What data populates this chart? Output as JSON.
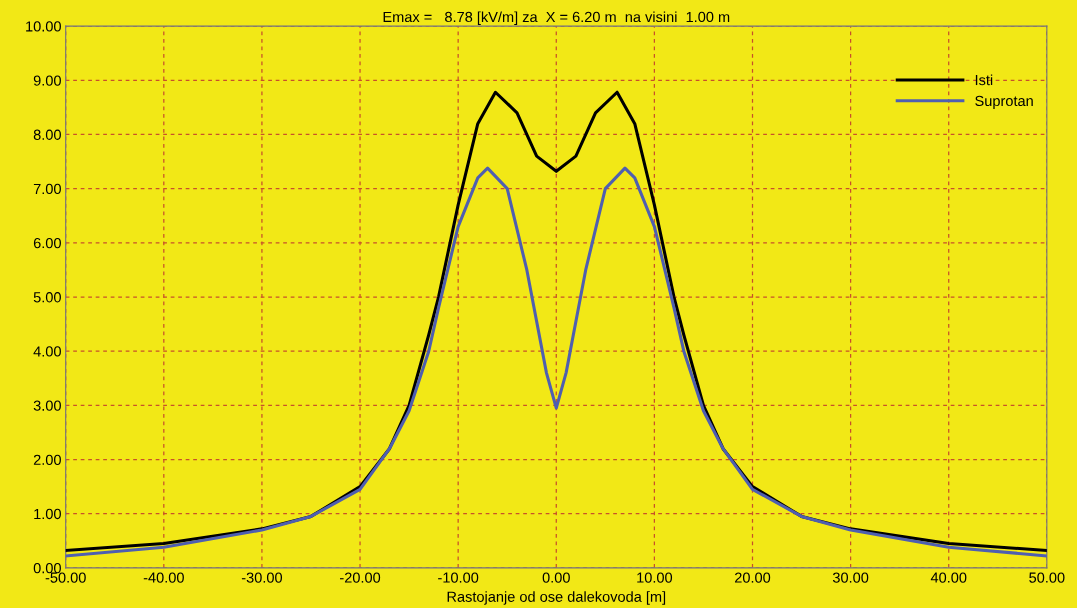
{
  "chart_data": {
    "type": "line",
    "title": "Emax =   8.78 [kV/m] za  X = 6.20 m  na visini  1.00 m",
    "xlabel": "Rastojanje od ose dalekovoda [m]",
    "xlim": [
      -50,
      50
    ],
    "ylim": [
      0,
      10
    ],
    "xticks": [
      {
        "value": -50,
        "label": "-50.00"
      },
      {
        "value": -40,
        "label": "-40.00"
      },
      {
        "value": -30,
        "label": "-30.00"
      },
      {
        "value": -20,
        "label": "-20.00"
      },
      {
        "value": -10,
        "label": "-10.00"
      },
      {
        "value": 0,
        "label": "0.00"
      },
      {
        "value": 10,
        "label": "10.00"
      },
      {
        "value": 20,
        "label": "20.00"
      },
      {
        "value": 30,
        "label": "30.00"
      },
      {
        "value": 40,
        "label": "40.00"
      },
      {
        "value": 50,
        "label": "50.00"
      }
    ],
    "yticks": [
      {
        "value": 0,
        "label": "0.00"
      },
      {
        "value": 1,
        "label": "1.00"
      },
      {
        "value": 2,
        "label": "2.00"
      },
      {
        "value": 3,
        "label": "3.00"
      },
      {
        "value": 4,
        "label": "4.00"
      },
      {
        "value": 5,
        "label": "5.00"
      },
      {
        "value": 6,
        "label": "6.00"
      },
      {
        "value": 7,
        "label": "7.00"
      },
      {
        "value": 8,
        "label": "8.00"
      },
      {
        "value": 9,
        "label": "9.00"
      },
      {
        "value": 10,
        "label": "10.00"
      }
    ],
    "grid": true,
    "legend": "top right",
    "marker": "none",
    "line_style": "solid",
    "series": [
      {
        "name": "Isti",
        "color": "#000000",
        "x": [
          -50,
          -40,
          -30,
          -25,
          -20,
          -17,
          -15,
          -13,
          -12,
          -10,
          -8,
          -6.2,
          -4,
          -2,
          0,
          2,
          4,
          6.2,
          8,
          10,
          12,
          13,
          15,
          17,
          20,
          25,
          30,
          40,
          50
        ],
        "values": [
          0.32,
          0.45,
          0.72,
          0.95,
          1.5,
          2.2,
          3.0,
          4.3,
          5.0,
          6.7,
          8.2,
          8.78,
          8.4,
          7.6,
          7.32,
          7.6,
          8.4,
          8.78,
          8.2,
          6.7,
          5.0,
          4.3,
          3.0,
          2.2,
          1.5,
          0.95,
          0.72,
          0.45,
          0.32
        ]
      },
      {
        "name": "Suprotan",
        "color": "#4f5fb0",
        "x": [
          -50,
          -40,
          -30,
          -25,
          -20,
          -17,
          -15,
          -13,
          -12,
          -10,
          -8,
          -7,
          -5,
          -3,
          -1,
          0,
          1,
          3,
          5,
          7,
          8,
          10,
          12,
          13,
          15,
          17,
          20,
          25,
          30,
          40,
          50
        ],
        "values": [
          0.22,
          0.38,
          0.7,
          0.95,
          1.45,
          2.2,
          2.9,
          4.0,
          4.8,
          6.3,
          7.2,
          7.38,
          7.0,
          5.5,
          3.6,
          2.95,
          3.6,
          5.5,
          7.0,
          7.38,
          7.2,
          6.3,
          4.8,
          4.0,
          2.9,
          2.2,
          1.45,
          0.95,
          0.7,
          0.38,
          0.22
        ]
      }
    ]
  }
}
